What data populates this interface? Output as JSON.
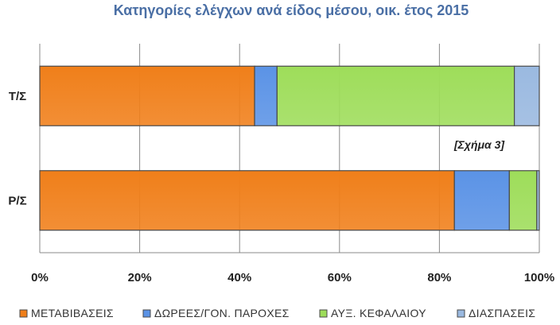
{
  "chart_data": {
    "type": "bar",
    "orientation": "horizontal",
    "stacked": "percent",
    "title": "Κατηγορίες ελέγχων ανά είδος μέσου, οικ. έτος 2015",
    "categories": [
      "Τ/Σ",
      "Ρ/Σ"
    ],
    "series": [
      {
        "name": "ΜΕΤΑΒΙΒΑΣΕΙΣ",
        "color": "#f07f1a",
        "values": [
          43,
          83
        ]
      },
      {
        "name": "ΔΩΡΕΕΣ/ΓΟΝ. ΠΑΡΟΧΕΣ",
        "color": "#5b93e6",
        "values": [
          4.5,
          11
        ]
      },
      {
        "name": "ΑΥΞ. ΚΕΦΑΛΑΙΟΥ",
        "color": "#9edd5a",
        "values": [
          47.5,
          5.5
        ]
      },
      {
        "name": "ΔΙΑΣΠΑΣΕΙΣ",
        "color": "#9ab9e0",
        "values": [
          5,
          0.5
        ]
      }
    ],
    "x_ticks": [
      "0%",
      "20%",
      "40%",
      "60%",
      "80%",
      "100%"
    ],
    "xlim": [
      0,
      100
    ],
    "grid": "vertical",
    "legend_position": "bottom",
    "annotation": "[Σχήμα 3]"
  }
}
